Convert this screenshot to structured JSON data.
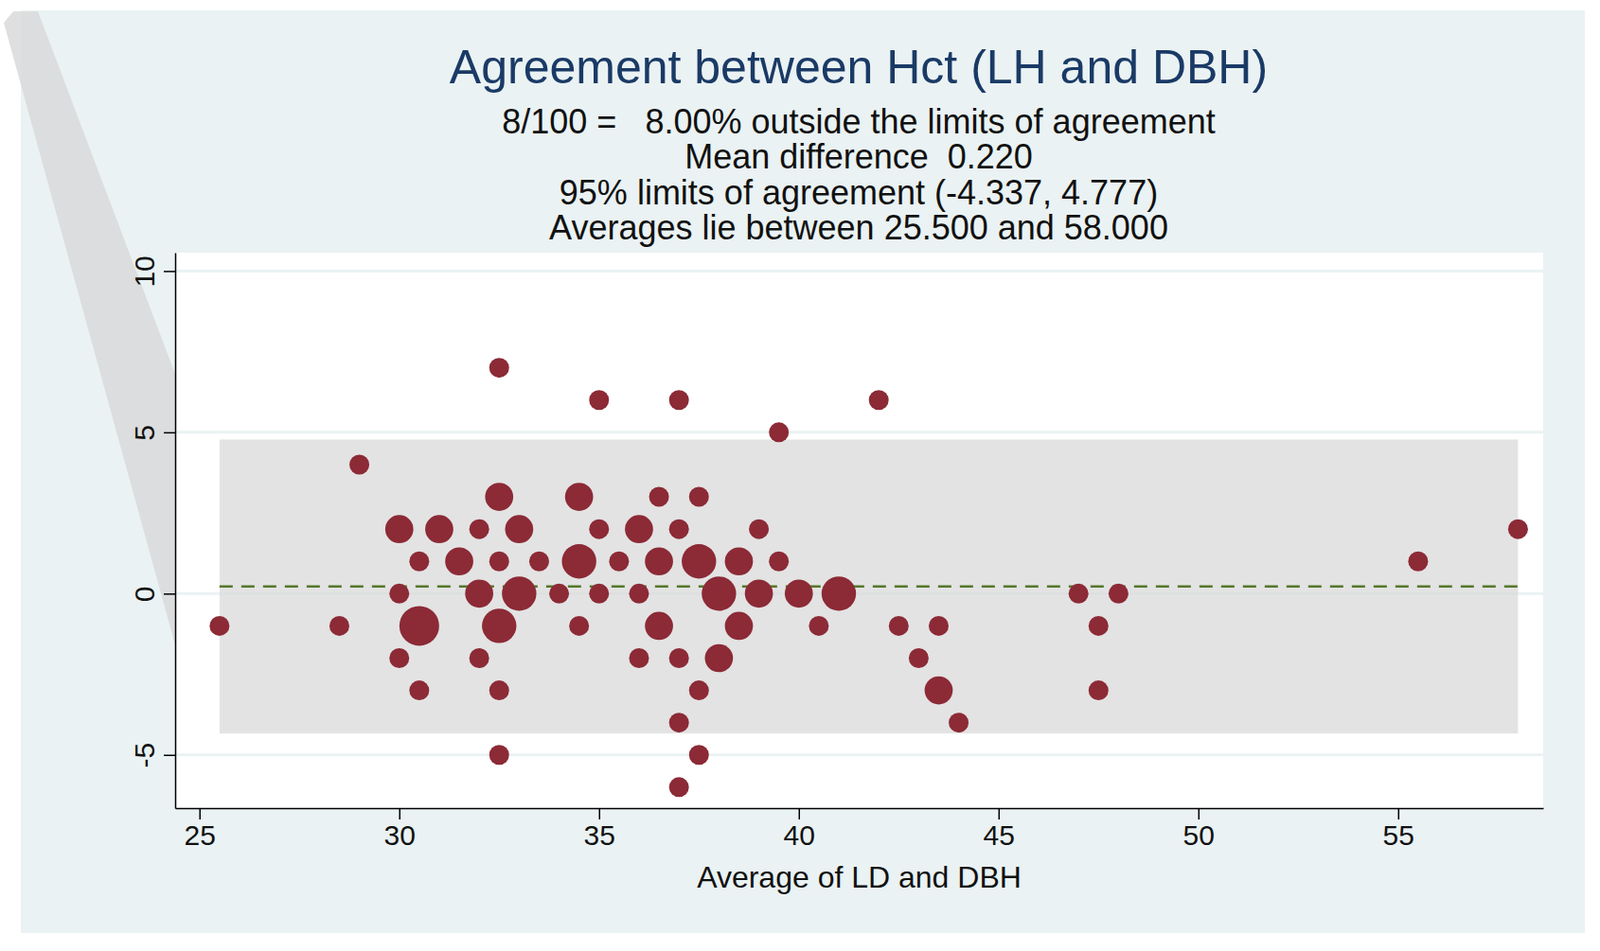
{
  "chart_data": {
    "type": "scatter",
    "title": "Agreement between  Hct (LH and DBH)",
    "subtitle": [
      "8/100 =   8.00% outside the limits of agreement",
      "Mean difference  0.220",
      "95% limits of agreement (-4.337, 4.777)",
      "Averages lie between 25.500 and 58.000"
    ],
    "x_label": "Average of LD and DBH",
    "mean_difference": 0.22,
    "limits_of_agreement": [
      -4.337,
      4.777
    ],
    "averages_range": [
      25.5,
      58
    ],
    "x": [
      32.5,
      35,
      37,
      42,
      39.5,
      29,
      32.5,
      34.5,
      36.5,
      37.5,
      30,
      31,
      32,
      33,
      35,
      36,
      37,
      39,
      58,
      30.5,
      31.5,
      32.5,
      33.5,
      34.5,
      35.5,
      36.5,
      37.5,
      38.5,
      39.5,
      55.5,
      30,
      32,
      33,
      34,
      35,
      36,
      38,
      39,
      40,
      41,
      47,
      48,
      25.5,
      28.5,
      30.5,
      32.5,
      34.5,
      36.5,
      38.5,
      40.5,
      42.5,
      43.5,
      47.5,
      30,
      32,
      36,
      37,
      38,
      43,
      30.5,
      32.5,
      37.5,
      43.5,
      47.5,
      37,
      44,
      32.5,
      37.5,
      37
    ],
    "values": [
      7,
      6,
      6,
      6,
      5,
      4,
      3,
      3,
      3,
      3,
      2,
      2,
      2,
      2,
      2,
      2,
      2,
      2,
      2,
      1,
      1,
      1,
      1,
      1,
      1,
      1,
      1,
      1,
      1,
      1,
      0,
      0,
      0,
      0,
      0,
      0,
      0,
      0,
      0,
      0,
      0,
      0,
      -1,
      -1,
      -1,
      -1,
      -1,
      -1,
      -1,
      -1,
      -1,
      -1,
      -1,
      -2,
      -2,
      -2,
      -2,
      -2,
      -2,
      -3,
      -3,
      -3,
      -3,
      -3,
      -4,
      -4,
      -5,
      -5,
      -6
    ],
    "sizes": [
      1,
      1,
      1,
      1,
      1,
      1,
      2,
      2,
      1,
      1,
      2,
      2,
      1,
      2,
      1,
      2,
      1,
      1,
      1,
      1,
      2,
      1,
      1,
      3,
      1,
      2,
      3,
      2,
      1,
      1,
      1,
      2,
      3,
      1,
      1,
      1,
      3,
      2,
      2,
      3,
      1,
      1,
      1,
      1,
      4,
      3,
      1,
      2,
      2,
      1,
      1,
      1,
      1,
      1,
      1,
      1,
      1,
      2,
      1,
      1,
      1,
      1,
      2,
      1,
      1,
      1,
      1,
      1,
      1
    ],
    "color": "#8c2a36",
    "xlim": [
      24.39,
      58.63
    ],
    "ylim": [
      -6.65,
      10.57
    ],
    "xticks": [
      25,
      30,
      35,
      40,
      45,
      50,
      55
    ],
    "yticks": [
      -5,
      0,
      5,
      10
    ],
    "grid": true
  }
}
